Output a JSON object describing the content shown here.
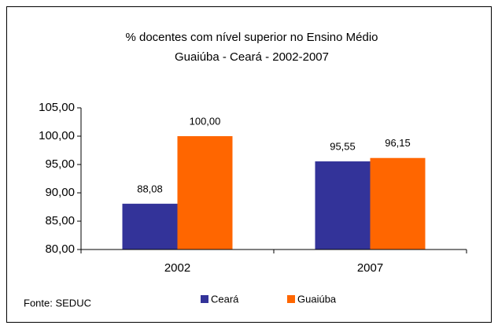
{
  "chart_data": {
    "type": "bar",
    "title": "% docentes com nível superior no Ensino Médio",
    "subtitle": "Guaiúba - Ceará - 2002-2007",
    "source": "Fonte: SEDUC",
    "categories": [
      "2002",
      "2007"
    ],
    "series": [
      {
        "name": "Ceará",
        "color": "#333399",
        "values": [
          88.08,
          95.55
        ],
        "value_labels": [
          "88,08",
          "95,55"
        ]
      },
      {
        "name": "Guaiúba",
        "color": "#ff6600",
        "values": [
          100,
          96.15
        ],
        "value_labels": [
          "100,00",
          "96,15"
        ]
      }
    ],
    "ylim": [
      80,
      105
    ],
    "yticks": [
      {
        "value": 80,
        "label": "80,00"
      },
      {
        "value": 85,
        "label": "85,00"
      },
      {
        "value": 90,
        "label": "90,00"
      },
      {
        "value": 95,
        "label": "95,00"
      },
      {
        "value": 100,
        "label": "100,00"
      },
      {
        "value": 105,
        "label": "105,00"
      }
    ],
    "grid": false,
    "legend": "bottom"
  }
}
